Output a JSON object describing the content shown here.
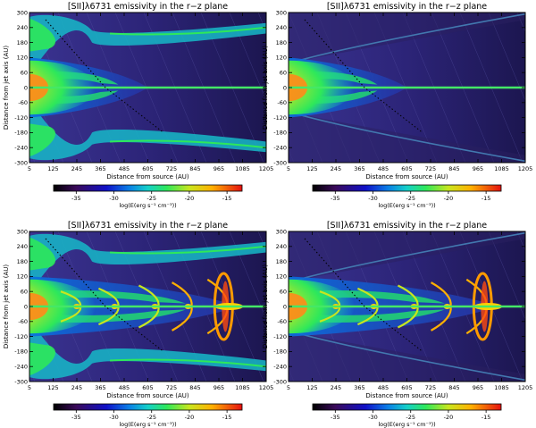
{
  "chart_data": [
    {
      "type": "heatmap",
      "title": "[SII]λ6731 emissivity in the r−z plane",
      "xlabel": "Distance from source (AU)",
      "ylabel": "Distance from jet axis (AU)",
      "x_ticks": [
        5,
        125,
        245,
        365,
        485,
        605,
        725,
        845,
        965,
        1085,
        1205
      ],
      "y_ticks": [
        300,
        240,
        180,
        120,
        60,
        0,
        -60,
        -120,
        -180,
        -240,
        -300
      ],
      "xlim": [
        5,
        1205
      ],
      "ylim": [
        -300,
        300
      ],
      "colorbar_label": "log(E(erg s⁻¹ cm⁻³))",
      "colorbar_ticks": [
        -35,
        -30,
        -25,
        -20,
        -15
      ],
      "colorbar_range": [
        -38,
        -13
      ],
      "structure": "full-jet-with-wiggles"
    },
    {
      "type": "heatmap",
      "title": "[SII]λ6731 emissivity in the r−z plane",
      "xlabel": "Distance from source (AU)",
      "ylabel": "Distance from jet axis (AU)",
      "x_ticks": [
        5,
        125,
        245,
        365,
        485,
        605,
        725,
        845,
        965,
        1085,
        1205
      ],
      "y_ticks": [
        300,
        240,
        180,
        120,
        60,
        0,
        -60,
        -120,
        -180,
        -240,
        -300
      ],
      "xlim": [
        5,
        1205
      ],
      "ylim": [
        -300,
        300
      ],
      "colorbar_label": "log(E(erg s⁻¹ cm⁻³))",
      "colorbar_ticks": [
        -35,
        -30,
        -25,
        -20,
        -15
      ],
      "colorbar_range": [
        -38,
        -13
      ],
      "structure": "cone-jet"
    },
    {
      "type": "heatmap",
      "title": "[SII]λ6731 emissivity in the r−z plane",
      "xlabel": "Distance from source (AU)",
      "ylabel": "Distance from jet axis (AU)",
      "x_ticks": [
        5,
        125,
        245,
        365,
        485,
        605,
        725,
        845,
        965,
        1085,
        1205
      ],
      "y_ticks": [
        300,
        240,
        180,
        120,
        60,
        0,
        -60,
        -120,
        -180,
        -240,
        -300
      ],
      "xlim": [
        5,
        1205
      ],
      "ylim": [
        -300,
        300
      ],
      "colorbar_label": "log(E(erg s⁻¹ cm⁻³))",
      "colorbar_ticks": [
        -35,
        -30,
        -25,
        -20,
        -15
      ],
      "colorbar_range": [
        -38,
        -13
      ],
      "structure": "full-jet-with-knots"
    },
    {
      "type": "heatmap",
      "title": "[SII]λ6731 emissivity in the r−z plane",
      "xlabel": "Distance from source (AU)",
      "ylabel": "Distance from jet axis (AU)",
      "x_ticks": [
        5,
        125,
        245,
        365,
        485,
        605,
        725,
        845,
        965,
        1085,
        1205
      ],
      "y_ticks": [
        300,
        240,
        180,
        120,
        60,
        0,
        -60,
        -120,
        -180,
        -240,
        -300
      ],
      "xlim": [
        5,
        1205
      ],
      "ylim": [
        -300,
        300
      ],
      "colorbar_label": "log(E(erg s⁻¹ cm⁻³))",
      "colorbar_ticks": [
        -35,
        -30,
        -25,
        -20,
        -15
      ],
      "colorbar_range": [
        -38,
        -13
      ],
      "structure": "cone-jet-with-knots"
    }
  ]
}
